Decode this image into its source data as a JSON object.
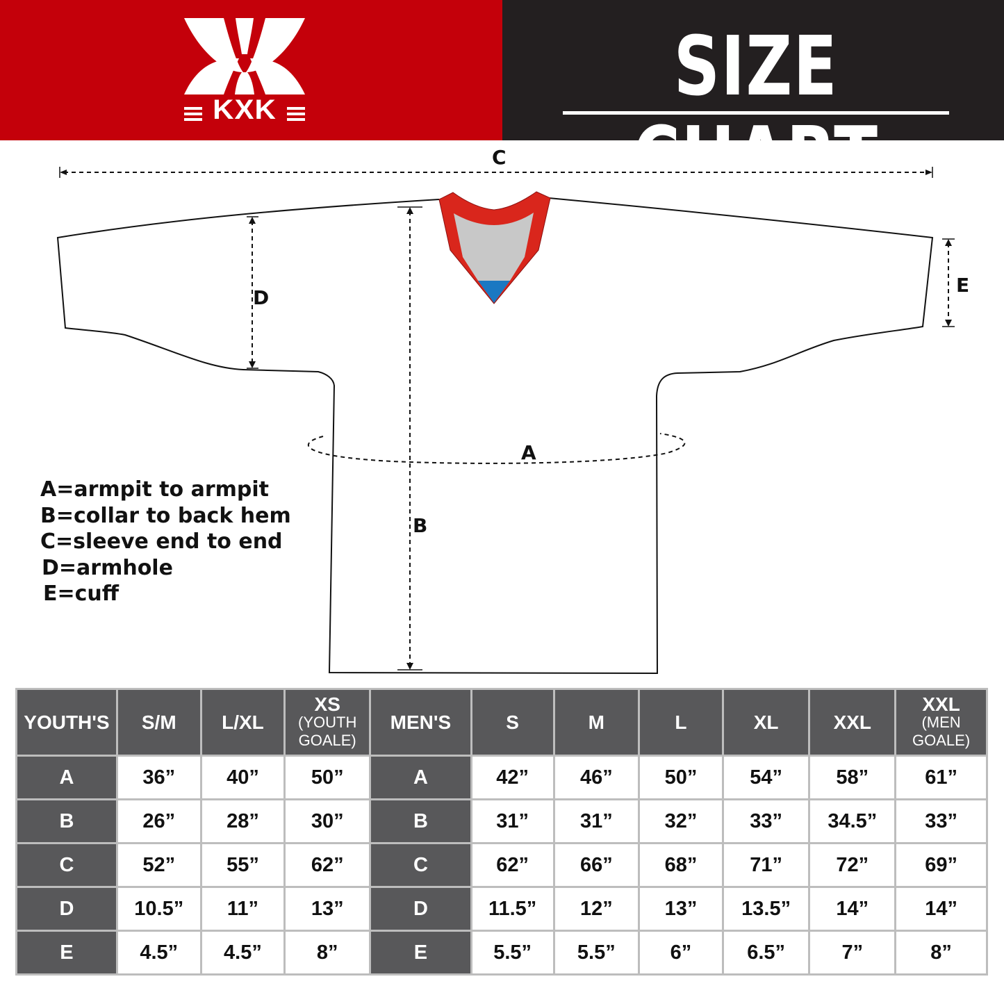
{
  "header": {
    "brand": "KXK",
    "title": "SIZE CHART",
    "colors": {
      "red": "#c4000a",
      "dark": "#231f20",
      "table_header": "#58585a"
    }
  },
  "diagram": {
    "labels": {
      "a": "A",
      "b": "B",
      "c": "C",
      "d": "D",
      "e": "E"
    }
  },
  "legend": [
    "A=armpit to armpit",
    "B=collar to back hem",
    "C=sleeve end to end",
    "D=armhole",
    "E=cuff"
  ],
  "table": {
    "columns": [
      {
        "main": "YOUTH'S",
        "sub": ""
      },
      {
        "main": "S/M",
        "sub": ""
      },
      {
        "main": "L/XL",
        "sub": ""
      },
      {
        "main": "XS",
        "sub": "(YOUTH GOALE)"
      },
      {
        "main": "MEN'S",
        "sub": ""
      },
      {
        "main": "S",
        "sub": ""
      },
      {
        "main": "M",
        "sub": ""
      },
      {
        "main": "L",
        "sub": ""
      },
      {
        "main": "XL",
        "sub": ""
      },
      {
        "main": "XXL",
        "sub": ""
      },
      {
        "main": "XXL",
        "sub": "(MEN GOALE)"
      }
    ],
    "rows": [
      [
        "A",
        "36”",
        "40”",
        "50”",
        "A",
        "42”",
        "46”",
        "50”",
        "54”",
        "58”",
        "61”"
      ],
      [
        "B",
        "26”",
        "28”",
        "30”",
        "B",
        "31”",
        "31”",
        "32”",
        "33”",
        "34.5”",
        "33”"
      ],
      [
        "C",
        "52”",
        "55”",
        "62”",
        "C",
        "62”",
        "66”",
        "68”",
        "71”",
        "72”",
        "69”"
      ],
      [
        "D",
        "10.5”",
        "11”",
        "13”",
        "D",
        "11.5”",
        "12”",
        "13”",
        "13.5”",
        "14”",
        "14”"
      ],
      [
        "E",
        "4.5”",
        "4.5”",
        "8”",
        "E",
        "5.5”",
        "5.5”",
        "6”",
        "6.5”",
        "7”",
        "8”"
      ]
    ]
  }
}
